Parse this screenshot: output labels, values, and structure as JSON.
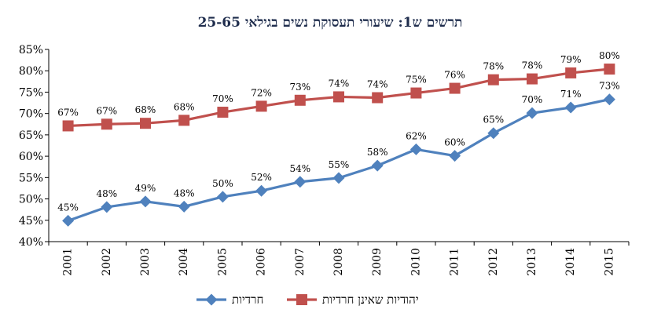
{
  "chart_data": {
    "type": "line",
    "title": "תרשים ש1: שיעורי תעסוקת נשים בגילאי 25-65",
    "categories": [
      "2001",
      "2002",
      "2003",
      "2004",
      "2005",
      "2006",
      "2007",
      "2008",
      "2009",
      "2010",
      "2011",
      "2012",
      "2013",
      "2014",
      "2015"
    ],
    "ylim": [
      40,
      85
    ],
    "yticks": [
      40,
      45,
      50,
      55,
      60,
      65,
      70,
      75,
      80,
      85
    ],
    "ytick_labels": [
      "40%",
      "45%",
      "50%",
      "55%",
      "60%",
      "65%",
      "70%",
      "75%",
      "80%",
      "85%"
    ],
    "grid": false,
    "legend": "bottom",
    "series": [
      {
        "name": "חרדיות",
        "color": "#4f81bd",
        "marker": "diamond",
        "values": [
          44.9,
          48.1,
          49.4,
          48.2,
          50.5,
          51.9,
          54.0,
          54.9,
          57.8,
          61.6,
          60.1,
          65.4,
          70.1,
          71.4,
          73.3
        ],
        "labels": [
          "45%",
          "48%",
          "49%",
          "48%",
          "50%",
          "52%",
          "54%",
          "55%",
          "58%",
          "62%",
          "60%",
          "65%",
          "70%",
          "71%",
          "73%"
        ]
      },
      {
        "name": "יהודיות שאינן חרדיות",
        "color": "#c0504d",
        "marker": "square",
        "values": [
          67.1,
          67.5,
          67.7,
          68.4,
          70.3,
          71.7,
          73.1,
          73.9,
          73.7,
          74.8,
          75.9,
          77.9,
          78.1,
          79.5,
          80.4
        ],
        "labels": [
          "67%",
          "67%",
          "68%",
          "68%",
          "70%",
          "72%",
          "73%",
          "74%",
          "74%",
          "75%",
          "76%",
          "78%",
          "78%",
          "79%",
          "80%"
        ]
      }
    ]
  }
}
